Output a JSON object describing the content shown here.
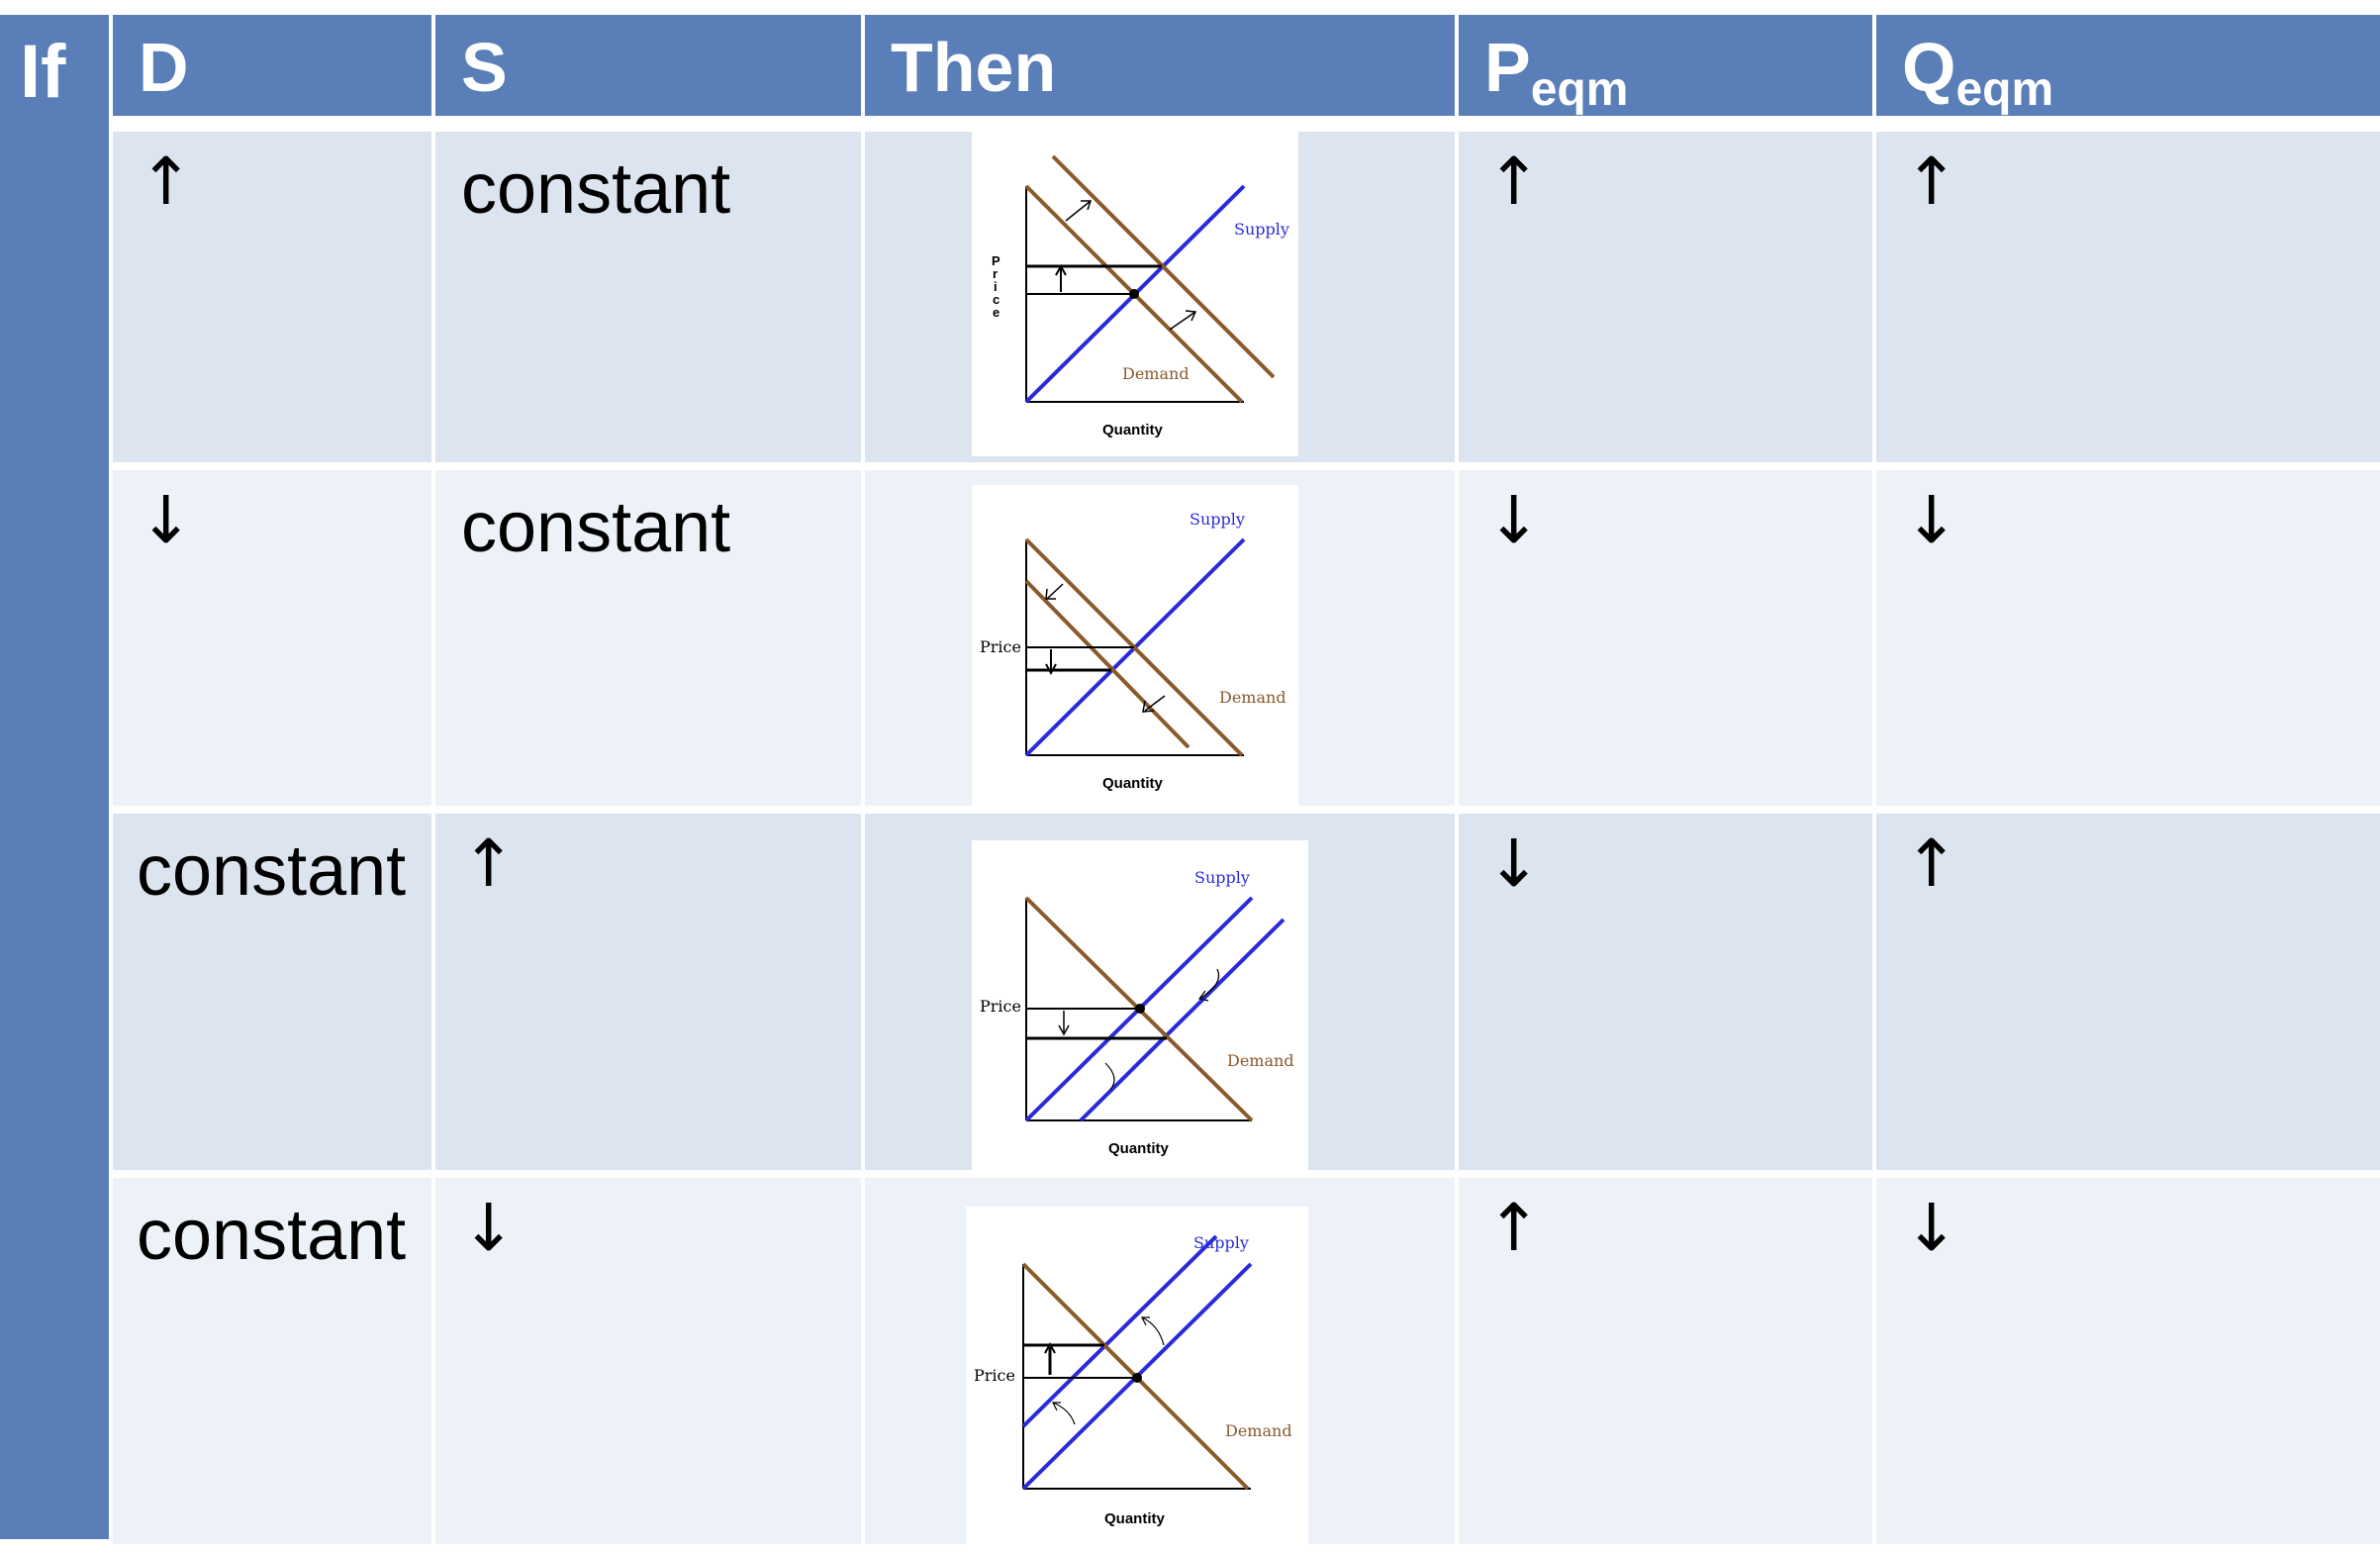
{
  "header": {
    "if": "If",
    "d": "D",
    "s": "S",
    "then": "Then",
    "p_main": "P",
    "p_sub": "eqm",
    "q_main": "Q",
    "q_sub": "eqm"
  },
  "rows": [
    {
      "d": "↑",
      "s": "constant",
      "p": "↑",
      "q": "↑",
      "graph": {
        "supply": "Supply",
        "demand": "Demand",
        "quantity": "Quantity",
        "price": "P r i c e"
      }
    },
    {
      "d": "↓",
      "s": "constant",
      "p": "↓",
      "q": "↓",
      "graph": {
        "supply": "Supply",
        "demand": "Demand",
        "quantity": "Quantity",
        "price": "Price"
      }
    },
    {
      "d": "constant",
      "s": "↑",
      "p": "↓",
      "q": "↑",
      "graph": {
        "supply": "Supply",
        "demand": "Demand",
        "quantity": "Quantity",
        "price": "Price"
      }
    },
    {
      "d": "constant",
      "s": "↓",
      "p": "↑",
      "q": "↓",
      "graph": {
        "supply": "Supply",
        "demand": "Demand",
        "quantity": "Quantity",
        "price": "Price"
      }
    }
  ],
  "colors": {
    "header": "#5a7eb8",
    "row_dark": "#dce4ef",
    "row_light": "#edf1f8",
    "supply": "#2a2ad8",
    "demand": "#8b5a2b"
  }
}
